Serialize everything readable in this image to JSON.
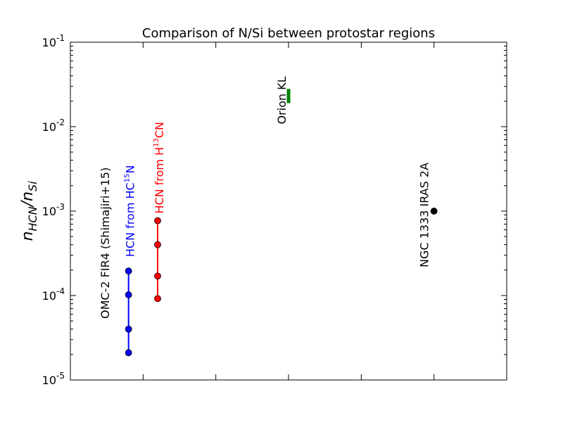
{
  "chart_data": {
    "type": "scatter",
    "title": "Comparison of N/Si between protostar regions",
    "xlabel": "",
    "ylabel": "n_{HCN}/n_{Si}",
    "yscale": "log",
    "ylim": [
      1e-05,
      0.1
    ],
    "xlim": [
      0,
      6
    ],
    "grid": false,
    "y_ticks": [
      {
        "value": 1e-05,
        "base": "10",
        "exp": "-5"
      },
      {
        "value": 0.0001,
        "base": "10",
        "exp": "-4"
      },
      {
        "value": 0.001,
        "base": "10",
        "exp": "-3"
      },
      {
        "value": 0.01,
        "base": "10",
        "exp": "-2"
      },
      {
        "value": 0.1,
        "base": "10",
        "exp": "-1"
      }
    ],
    "x_ticks": [
      0,
      1,
      2,
      3,
      4,
      5,
      6
    ],
    "series": [
      {
        "label_text": "HCN from HC",
        "label_sup": "15",
        "label_tail": "N",
        "color": "#0000ff",
        "x": [
          0.8,
          0.8,
          0.8,
          0.8
        ],
        "y": [
          2.1e-05,
          4e-05,
          0.000102,
          0.000195
        ]
      },
      {
        "label_text": "HCN from H",
        "label_sup": "13",
        "label_tail": "CN",
        "color": "#ff0000",
        "x": [
          1.2,
          1.2,
          1.2,
          1.2
        ],
        "y": [
          9.2e-05,
          0.00017,
          0.0004,
          0.00077
        ]
      },
      {
        "label_text": "NGC 1333 IRAS 2A",
        "color": "#000000",
        "x": [
          5.0
        ],
        "y": [
          0.001
        ]
      }
    ],
    "ranges": [
      {
        "label_text": "Orion KL",
        "color": "#008000",
        "x": 3.0,
        "y_range": [
          0.019,
          0.028
        ]
      }
    ],
    "annotations": [
      {
        "text": "OMC-2 FIR4 (Shimajiri+15)",
        "color": "#000000"
      }
    ]
  }
}
